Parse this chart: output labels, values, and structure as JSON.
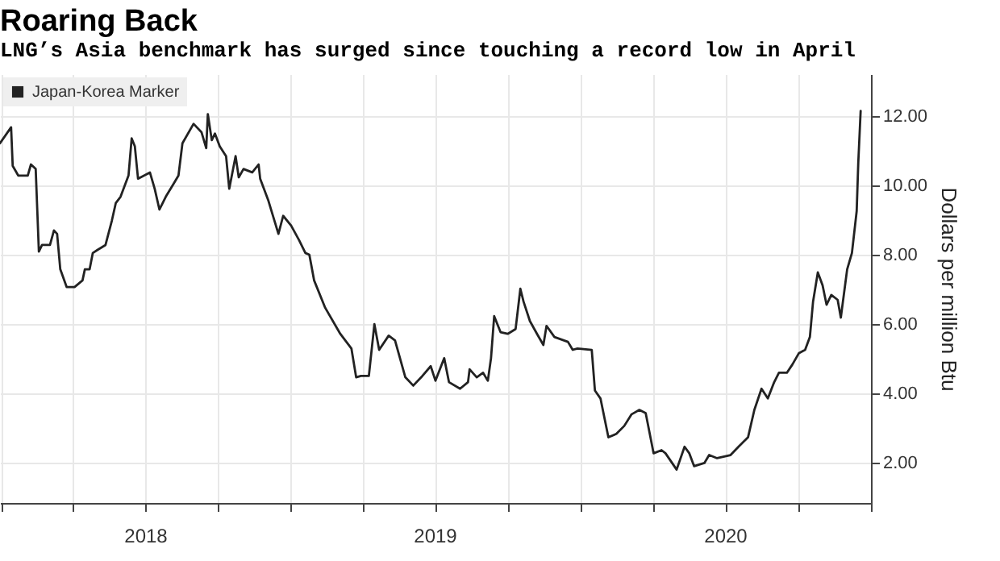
{
  "chart_data": {
    "type": "line",
    "title": "Roaring Back",
    "subtitle": "LNG’s Asia benchmark has surged since touching a record low in April",
    "ylabel": "Dollars per million Btu",
    "x": [
      "2017-12-30",
      "2018-01-13",
      "2018-01-15",
      "2018-01-22",
      "2018-02-03",
      "2018-02-07",
      "2018-02-13",
      "2018-02-17",
      "2018-02-21",
      "2018-03-03",
      "2018-03-08",
      "2018-03-12",
      "2018-03-16",
      "2018-03-24",
      "2018-04-03",
      "2018-04-13",
      "2018-04-16",
      "2018-04-22",
      "2018-04-26",
      "2018-05-02",
      "2018-05-12",
      "2018-05-20",
      "2018-05-25",
      "2018-05-31",
      "2018-06-10",
      "2018-06-14",
      "2018-06-18",
      "2018-06-22",
      "2018-07-07",
      "2018-07-13",
      "2018-07-19",
      "2018-07-27",
      "2018-08-06",
      "2018-08-12",
      "2018-08-17",
      "2018-08-31",
      "2018-09-10",
      "2018-09-16",
      "2018-09-18",
      "2018-09-23",
      "2018-09-27",
      "2018-10-03",
      "2018-10-11",
      "2018-10-15",
      "2018-10-23",
      "2018-10-27",
      "2018-11-02",
      "2018-11-13",
      "2018-11-21",
      "2018-11-23",
      "2018-12-03",
      "2018-12-11",
      "2018-12-16",
      "2018-12-22",
      "2019-01-01",
      "2019-01-11",
      "2019-01-19",
      "2019-01-24",
      "2019-01-30",
      "2019-02-13",
      "2019-03-04",
      "2019-03-18",
      "2019-03-24",
      "2019-03-30",
      "2019-04-09",
      "2019-04-16",
      "2019-04-22",
      "2019-05-04",
      "2019-05-12",
      "2019-05-25",
      "2019-06-04",
      "2019-06-14",
      "2019-06-26",
      "2019-07-02",
      "2019-07-13",
      "2019-07-19",
      "2019-08-02",
      "2019-08-12",
      "2019-08-14",
      "2019-08-23",
      "2019-08-31",
      "2019-09-06",
      "2019-09-10",
      "2019-09-14",
      "2019-09-22",
      "2019-10-01",
      "2019-10-11",
      "2019-10-17",
      "2019-10-21",
      "2019-10-29",
      "2019-11-07",
      "2019-11-15",
      "2019-11-19",
      "2019-11-29",
      "2019-12-16",
      "2019-12-22",
      "2019-12-28",
      "2020-01-15",
      "2020-01-19",
      "2020-01-26",
      "2020-02-05",
      "2020-02-15",
      "2020-02-25",
      "2020-03-05",
      "2020-03-15",
      "2020-03-23",
      "2020-04-02",
      "2020-04-12",
      "2020-04-17",
      "2020-05-01",
      "2020-05-11",
      "2020-05-17",
      "2020-05-23",
      "2020-06-05",
      "2020-06-11",
      "2020-06-21",
      "2020-07-08",
      "2020-07-18",
      "2020-07-30",
      "2020-08-07",
      "2020-08-16",
      "2020-08-24",
      "2020-09-01",
      "2020-09-07",
      "2020-09-17",
      "2020-09-24",
      "2020-10-02",
      "2020-10-10",
      "2020-10-16",
      "2020-10-20",
      "2020-10-26",
      "2020-11-01",
      "2020-11-06",
      "2020-11-12",
      "2020-11-20",
      "2020-11-24",
      "2020-12-02",
      "2020-12-08",
      "2020-12-14",
      "2020-12-16",
      "2020-12-19"
    ],
    "series": [
      {
        "name": "Japan-Korea Marker",
        "color": "#222222",
        "values": [
          11.21,
          11.67,
          10.56,
          10.28,
          10.28,
          10.6,
          10.47,
          8.09,
          8.28,
          8.28,
          8.7,
          8.6,
          7.58,
          7.07,
          7.07,
          7.26,
          7.58,
          7.58,
          8.05,
          8.14,
          8.28,
          8.98,
          9.49,
          9.67,
          10.28,
          11.35,
          11.12,
          10.19,
          10.37,
          9.9,
          9.3,
          9.67,
          10.05,
          10.28,
          11.21,
          11.77,
          11.53,
          11.07,
          12.05,
          11.3,
          11.49,
          11.12,
          10.84,
          9.9,
          10.84,
          10.23,
          10.47,
          10.37,
          10.6,
          10.19,
          9.58,
          8.98,
          8.6,
          9.12,
          8.84,
          8.42,
          8.05,
          8.0,
          7.26,
          6.47,
          5.72,
          5.3,
          4.47,
          4.51,
          4.51,
          6.0,
          5.26,
          5.67,
          5.53,
          4.47,
          4.23,
          4.47,
          4.79,
          4.37,
          5.02,
          4.33,
          4.14,
          4.33,
          4.7,
          4.47,
          4.6,
          4.37,
          5.02,
          6.23,
          5.77,
          5.72,
          5.86,
          7.02,
          6.65,
          6.09,
          5.72,
          5.4,
          5.95,
          5.63,
          5.49,
          5.26,
          5.3,
          5.26,
          4.09,
          3.86,
          2.74,
          2.84,
          3.07,
          3.4,
          3.53,
          3.44,
          2.28,
          2.37,
          2.28,
          1.81,
          2.47,
          2.28,
          1.91,
          2.0,
          2.23,
          2.14,
          2.23,
          2.47,
          2.74,
          3.53,
          4.14,
          3.86,
          4.33,
          4.6,
          4.6,
          4.84,
          5.16,
          5.26,
          5.63,
          6.65,
          7.49,
          7.12,
          6.56,
          6.84,
          6.7,
          6.19,
          7.58,
          8.05,
          9.26,
          10.65,
          12.14
        ]
      }
    ],
    "xlim": [
      "2017-12-30",
      "2021-01-01"
    ],
    "xticks": [
      {
        "value": "2018-01-01",
        "label": null
      },
      {
        "value": "2018-04-01",
        "label": null
      },
      {
        "value": "2018-07-01",
        "label": "2018"
      },
      {
        "value": "2018-10-01",
        "label": null
      },
      {
        "value": "2019-01-01",
        "label": null
      },
      {
        "value": "2019-04-01",
        "label": null
      },
      {
        "value": "2019-07-01",
        "label": "2019"
      },
      {
        "value": "2019-10-01",
        "label": null
      },
      {
        "value": "2020-01-01",
        "label": null
      },
      {
        "value": "2020-04-01",
        "label": null
      },
      {
        "value": "2020-07-01",
        "label": "2020"
      },
      {
        "value": "2020-10-01",
        "label": null
      },
      {
        "value": "2021-01-01",
        "label": null
      }
    ],
    "ylim": [
      0.85,
      13.2
    ],
    "yticks": [
      {
        "value": 2,
        "label": "2.00"
      },
      {
        "value": 4,
        "label": "4.00"
      },
      {
        "value": 6,
        "label": "6.00"
      },
      {
        "value": 8,
        "label": "8.00"
      },
      {
        "value": 10,
        "label": "10.00"
      },
      {
        "value": 12,
        "label": "12.00"
      }
    ],
    "grid": true,
    "legend": "top left"
  }
}
